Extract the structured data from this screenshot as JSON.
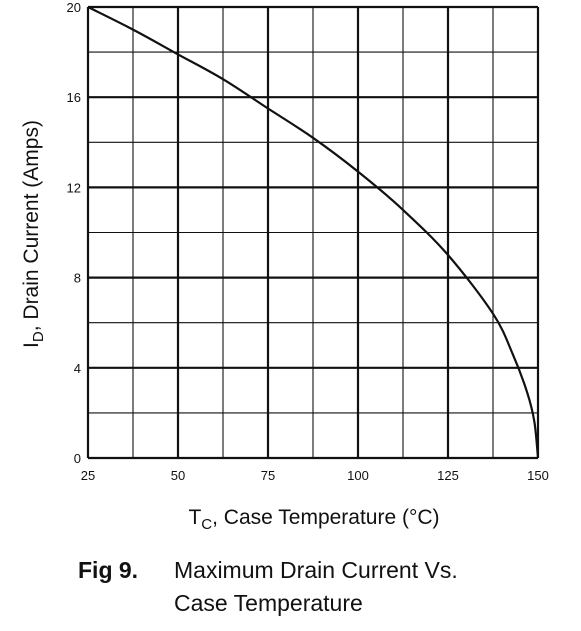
{
  "chart_data": {
    "type": "line",
    "xlabel": {
      "main": "T",
      "sub": "C",
      "rest": ", Case Temperature (°C)"
    },
    "ylabel": {
      "main": "I",
      "sub": "D",
      "rest": ", Drain Current (Amps)"
    },
    "xlim": [
      25,
      150
    ],
    "ylim": [
      0,
      20
    ],
    "x_ticks": [
      25,
      50,
      75,
      100,
      125,
      150
    ],
    "y_ticks": [
      0,
      4,
      8,
      12,
      16,
      20
    ],
    "x_minor_step": 12.5,
    "y_minor_step": 2,
    "grid": true,
    "series": [
      {
        "x": [
          25,
          37.5,
          50,
          62.5,
          75,
          87.5,
          100,
          112.5,
          125,
          137.5,
          143,
          147,
          149,
          150
        ],
        "y": [
          20,
          19.0,
          17.9,
          16.8,
          15.5,
          14.2,
          12.7,
          11.0,
          9.0,
          6.4,
          4.6,
          2.9,
          1.6,
          0
        ]
      }
    ]
  },
  "caption": {
    "fig_num": "Fig 9.",
    "line1": "Maximum Drain Current Vs.",
    "line2": "Case Temperature"
  }
}
